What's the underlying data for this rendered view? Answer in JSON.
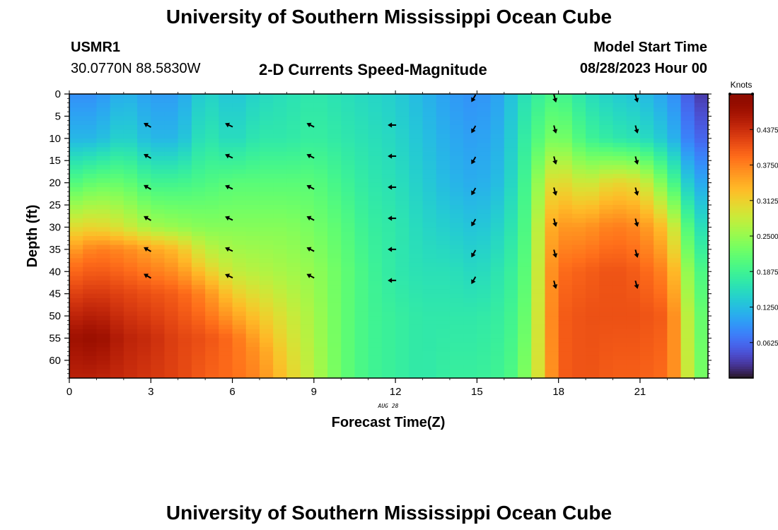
{
  "page": {
    "title": "University of Southern Mississippi Ocean Cube",
    "station_id": "USMR1",
    "station_coords": "30.0770N  88.5830W",
    "product_title": "2-D Currents Speed-Magnitude",
    "model_start_label": "Model Start Time",
    "model_start_value": "08/28/2023 Hour 00",
    "date_annotation": "AUG 28",
    "footer_title": "University of Southern Mississippi Ocean Cube"
  },
  "chart_data": {
    "type": "heatmap",
    "title": "2-D Currents Speed-Magnitude",
    "xlabel": "Forecast Time(Z)",
    "ylabel": "Depth (ft)",
    "xlim": [
      0,
      23
    ],
    "ylim": [
      64,
      0
    ],
    "y_inverted": true,
    "x_ticks": [
      0,
      3,
      6,
      9,
      12,
      15,
      18,
      21
    ],
    "y_ticks": [
      0,
      5,
      10,
      15,
      20,
      25,
      30,
      35,
      40,
      45,
      50,
      55,
      60
    ],
    "colorbar": {
      "label": "Knots",
      "min": 0,
      "max": 0.5,
      "ticks": [
        "0.0625",
        "0.1250",
        "0.1875",
        "0.2500",
        "0.3125",
        "0.3750",
        "0.4375"
      ],
      "colormap": "turbo"
    },
    "x": [
      0,
      0.5,
      1,
      1.5,
      2,
      2.5,
      3,
      3.5,
      4,
      4.5,
      5,
      5.5,
      6,
      6.5,
      7,
      7.5,
      8,
      8.5,
      9,
      9.5,
      10,
      10.5,
      11,
      11.5,
      12,
      12.5,
      13,
      13.5,
      14,
      14.5,
      15,
      15.5,
      16,
      16.5,
      17,
      17.5,
      18,
      18.5,
      19,
      19.5,
      20,
      20.5,
      21,
      21.5,
      22,
      22.5,
      23
    ],
    "profiles": [
      {
        "t": 0,
        "depth": [
          0,
          10,
          20,
          30,
          38,
          45,
          55,
          64
        ],
        "speed": [
          0.09,
          0.12,
          0.2,
          0.3,
          0.38,
          0.42,
          0.47,
          0.45
        ]
      },
      {
        "t": 1,
        "depth": [
          0,
          10,
          20,
          30,
          35,
          45,
          55,
          64
        ],
        "speed": [
          0.09,
          0.12,
          0.22,
          0.31,
          0.38,
          0.43,
          0.48,
          0.45
        ]
      },
      {
        "t": 2,
        "depth": [
          0,
          10,
          20,
          30,
          35,
          45,
          55,
          64
        ],
        "speed": [
          0.12,
          0.15,
          0.22,
          0.29,
          0.37,
          0.42,
          0.45,
          0.44
        ]
      },
      {
        "t": 3,
        "depth": [
          0,
          10,
          20,
          30,
          35,
          45,
          55,
          64
        ],
        "speed": [
          0.1,
          0.12,
          0.19,
          0.26,
          0.35,
          0.41,
          0.44,
          0.43
        ]
      },
      {
        "t": 4,
        "depth": [
          0,
          10,
          20,
          30,
          35,
          45,
          55,
          64
        ],
        "speed": [
          0.1,
          0.12,
          0.19,
          0.25,
          0.33,
          0.4,
          0.42,
          0.42
        ]
      },
      {
        "t": 5,
        "depth": [
          0,
          10,
          20,
          30,
          38,
          45,
          55,
          64
        ],
        "speed": [
          0.15,
          0.17,
          0.2,
          0.24,
          0.3,
          0.37,
          0.41,
          0.4
        ]
      },
      {
        "t": 6,
        "depth": [
          0,
          10,
          20,
          30,
          40,
          48,
          55,
          64
        ],
        "speed": [
          0.13,
          0.15,
          0.21,
          0.24,
          0.28,
          0.34,
          0.39,
          0.39
        ]
      },
      {
        "t": 7,
        "depth": [
          0,
          10,
          20,
          30,
          40,
          50,
          58,
          64
        ],
        "speed": [
          0.15,
          0.17,
          0.21,
          0.24,
          0.27,
          0.32,
          0.36,
          0.37
        ]
      },
      {
        "t": 8,
        "depth": [
          0,
          10,
          20,
          30,
          40,
          50,
          64
        ],
        "speed": [
          0.16,
          0.17,
          0.21,
          0.24,
          0.26,
          0.29,
          0.32
        ]
      },
      {
        "t": 9,
        "depth": [
          0,
          10,
          20,
          30,
          40,
          50,
          64
        ],
        "speed": [
          0.17,
          0.18,
          0.21,
          0.23,
          0.25,
          0.26,
          0.27
        ]
      },
      {
        "t": 10,
        "depth": [
          0,
          10,
          20,
          30,
          40,
          50,
          64
        ],
        "speed": [
          0.16,
          0.17,
          0.19,
          0.21,
          0.22,
          0.22,
          0.22
        ]
      },
      {
        "t": 11,
        "depth": [
          0,
          10,
          20,
          30,
          40,
          50,
          64
        ],
        "speed": [
          0.15,
          0.16,
          0.17,
          0.18,
          0.19,
          0.19,
          0.19
        ]
      },
      {
        "t": 12,
        "depth": [
          0,
          10,
          20,
          30,
          40,
          50,
          64
        ],
        "speed": [
          0.14,
          0.15,
          0.16,
          0.17,
          0.17,
          0.18,
          0.18
        ]
      },
      {
        "t": 13,
        "depth": [
          0,
          10,
          20,
          30,
          40,
          50,
          64
        ],
        "speed": [
          0.12,
          0.13,
          0.14,
          0.15,
          0.16,
          0.17,
          0.17
        ]
      },
      {
        "t": 14,
        "depth": [
          0,
          10,
          20,
          30,
          40,
          50,
          64
        ],
        "speed": [
          0.1,
          0.11,
          0.12,
          0.14,
          0.16,
          0.17,
          0.18
        ]
      },
      {
        "t": 15,
        "depth": [
          0,
          10,
          20,
          30,
          40,
          50,
          64
        ],
        "speed": [
          0.09,
          0.1,
          0.11,
          0.13,
          0.15,
          0.17,
          0.18
        ]
      },
      {
        "t": 16,
        "depth": [
          0,
          10,
          20,
          30,
          40,
          50,
          64
        ],
        "speed": [
          0.11,
          0.12,
          0.13,
          0.15,
          0.17,
          0.18,
          0.19
        ]
      },
      {
        "t": 16.5,
        "depth": [
          0,
          10,
          20,
          30,
          40,
          50,
          64
        ],
        "speed": [
          0.15,
          0.16,
          0.17,
          0.18,
          0.19,
          0.2,
          0.21
        ]
      },
      {
        "t": 17,
        "depth": [
          0,
          10,
          20,
          30,
          40,
          50,
          64
        ],
        "speed": [
          0.17,
          0.19,
          0.21,
          0.22,
          0.23,
          0.24,
          0.26
        ]
      },
      {
        "t": 17.5,
        "depth": [
          0,
          10,
          20,
          30,
          40,
          50,
          64
        ],
        "speed": [
          0.19,
          0.22,
          0.29,
          0.33,
          0.34,
          0.34,
          0.33
        ]
      },
      {
        "t": 18,
        "depth": [
          0,
          10,
          20,
          30,
          40,
          50,
          64
        ],
        "speed": [
          0.2,
          0.24,
          0.31,
          0.36,
          0.39,
          0.4,
          0.4
        ]
      },
      {
        "t": 19,
        "depth": [
          0,
          10,
          20,
          30,
          40,
          50,
          64
        ],
        "speed": [
          0.16,
          0.19,
          0.28,
          0.36,
          0.4,
          0.41,
          0.41
        ]
      },
      {
        "t": 20,
        "depth": [
          0,
          10,
          20,
          30,
          40,
          50,
          64
        ],
        "speed": [
          0.14,
          0.17,
          0.31,
          0.38,
          0.41,
          0.41,
          0.4
        ]
      },
      {
        "t": 21,
        "depth": [
          0,
          10,
          20,
          30,
          40,
          50,
          64
        ],
        "speed": [
          0.13,
          0.16,
          0.3,
          0.37,
          0.4,
          0.41,
          0.4
        ]
      },
      {
        "t": 22,
        "depth": [
          0,
          10,
          20,
          30,
          40,
          50,
          64
        ],
        "speed": [
          0.1,
          0.13,
          0.22,
          0.32,
          0.37,
          0.4,
          0.39
        ]
      },
      {
        "t": 22.5,
        "depth": [
          0,
          10,
          20,
          30,
          40,
          50,
          64
        ],
        "speed": [
          0.08,
          0.1,
          0.17,
          0.25,
          0.3,
          0.33,
          0.34
        ]
      },
      {
        "t": 23,
        "depth": [
          0,
          10,
          20,
          30,
          40,
          50,
          64
        ],
        "speed": [
          0.03,
          0.06,
          0.11,
          0.16,
          0.2,
          0.22,
          0.23
        ]
      }
    ],
    "vectors": [
      {
        "t": 3,
        "dir": 300,
        "depths": [
          7,
          14,
          21,
          28,
          35,
          41
        ]
      },
      {
        "t": 6,
        "dir": 295,
        "depths": [
          7,
          14,
          21,
          28,
          35,
          41
        ]
      },
      {
        "t": 9,
        "dir": 297,
        "depths": [
          7,
          14,
          21,
          28,
          35,
          41
        ]
      },
      {
        "t": 12,
        "dir": 270,
        "depths": [
          7,
          14,
          21,
          28,
          35,
          42
        ]
      },
      {
        "t": 15,
        "dir": 210,
        "depths": [
          1,
          8,
          15,
          22,
          29,
          36,
          42
        ]
      },
      {
        "t": 18,
        "dir": 165,
        "depths": [
          1,
          8,
          15,
          22,
          29,
          36,
          43
        ]
      },
      {
        "t": 21,
        "dir": 165,
        "depths": [
          1,
          8,
          15,
          22,
          29,
          36,
          43
        ]
      }
    ]
  }
}
